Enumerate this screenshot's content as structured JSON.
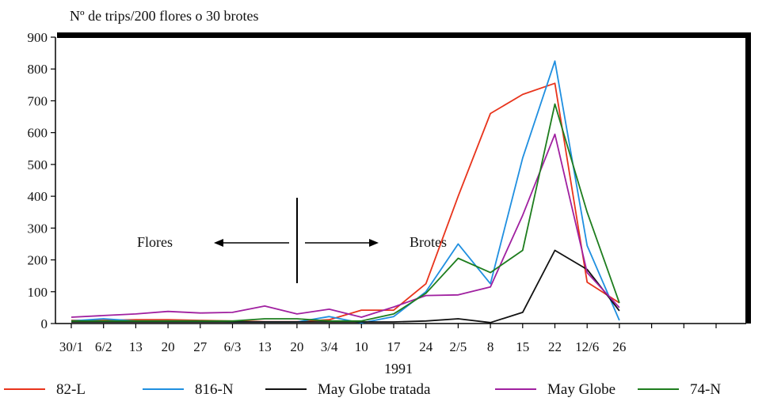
{
  "chart_data": {
    "type": "line",
    "ylabel": "Nº de trips/200 flores o 30 brotes",
    "xlabel": "1991",
    "ylim": [
      0,
      900
    ],
    "yticks": [
      0,
      100,
      200,
      300,
      400,
      500,
      600,
      700,
      800,
      900
    ],
    "grid": false,
    "legend_position": "bottom",
    "categories": [
      "30/1",
      "6/2",
      "13",
      "20",
      "27",
      "6/3",
      "13",
      "20",
      "3/4",
      "10",
      "17",
      "24",
      "2/5",
      "8",
      "15",
      "22",
      "12/6",
      "26"
    ],
    "annotations": {
      "left_label": "Flores",
      "right_label": "Brotes"
    },
    "series": [
      {
        "name": "82-L",
        "color": "#e8341c",
        "values": [
          10,
          10,
          12,
          12,
          10,
          8,
          6,
          6,
          12,
          42,
          42,
          125,
          400,
          660,
          720,
          755,
          130,
          65
        ]
      },
      {
        "name": "816-N",
        "color": "#1f8fe0",
        "values": [
          8,
          15,
          8,
          8,
          8,
          5,
          5,
          5,
          22,
          2,
          22,
          100,
          250,
          125,
          520,
          825,
          245,
          10
        ]
      },
      {
        "name": "May Globe tratada",
        "color": "#111111",
        "values": [
          5,
          5,
          5,
          5,
          5,
          5,
          5,
          5,
          5,
          5,
          5,
          8,
          15,
          3,
          35,
          230,
          170,
          40
        ]
      },
      {
        "name": "May Globe",
        "color": "#a020a0",
        "values": [
          20,
          25,
          30,
          38,
          33,
          35,
          55,
          30,
          45,
          20,
          52,
          88,
          90,
          115,
          340,
          595,
          160,
          50
        ]
      },
      {
        "name": "74-N",
        "color": "#1e7d1e",
        "values": [
          8,
          8,
          8,
          8,
          8,
          8,
          15,
          15,
          8,
          8,
          30,
          95,
          205,
          160,
          230,
          690,
          350,
          65
        ]
      }
    ]
  }
}
